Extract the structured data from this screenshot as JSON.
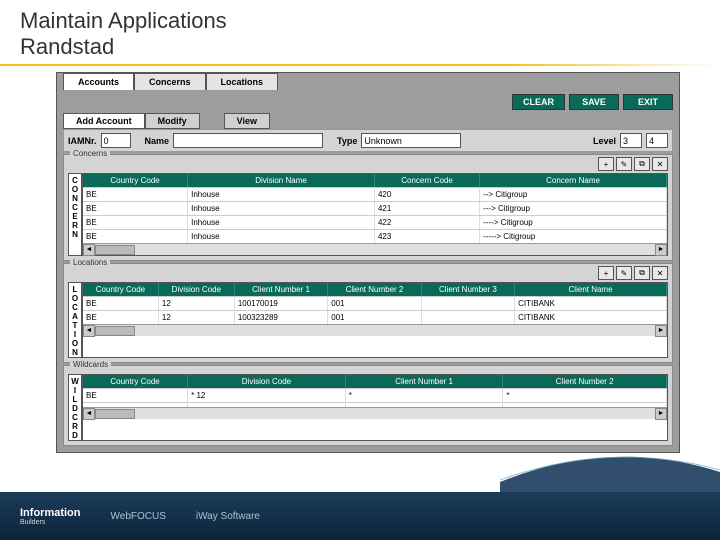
{
  "slide": {
    "title_line1": "Maintain Applications",
    "title_line2": "Randstad"
  },
  "tabs": [
    "Accounts",
    "Concerns",
    "Locations"
  ],
  "active_tab_index": 0,
  "top_buttons": {
    "clear": "CLEAR",
    "save": "SAVE",
    "exit": "EXIT"
  },
  "subtabs": [
    "Add Account",
    "Modify",
    "View"
  ],
  "active_subtab_index": 0,
  "form": {
    "lbl_iam": "IAMNr.",
    "iam_value": "0",
    "lbl_name": "Name",
    "name_value": "",
    "lbl_type": "Type",
    "type_value": "Unknown",
    "lbl_level": "Level",
    "level_a": "3",
    "level_b": "4"
  },
  "sections": {
    "concerns": {
      "label": "Concerns",
      "vlabel": "CONCERN",
      "headers": [
        "Country Code",
        "Division Name",
        "Concern Code",
        "Concern Name"
      ],
      "col_widths": [
        "18%",
        "32%",
        "18%",
        "32%"
      ],
      "rows": [
        [
          "BE",
          "Inhouse",
          "420",
          "--> Citigroup"
        ],
        [
          "BE",
          "Inhouse",
          "421",
          "---> Citigroup"
        ],
        [
          "BE",
          "Inhouse",
          "422",
          "----> Citigroup"
        ],
        [
          "BE",
          "Inhouse",
          "423",
          "-----> Citigroup"
        ]
      ]
    },
    "locations": {
      "label": "Locations",
      "vlabel": "LOCATION",
      "headers": [
        "Country Code",
        "Division Code",
        "Client Number 1",
        "Client Number 2",
        "Client Number 3",
        "Client Name"
      ],
      "col_widths": [
        "13%",
        "13%",
        "16%",
        "16%",
        "16%",
        "26%"
      ],
      "rows": [
        [
          "BE",
          "12",
          "100170019",
          "001",
          "",
          "CITIBANK"
        ],
        [
          "BE",
          "12",
          "100323289",
          "001",
          "",
          "CITIBANK"
        ]
      ]
    },
    "wildcards": {
      "label": "Wildcards",
      "vlabel": "WILDCRD",
      "headers": [
        "Country Code",
        "Division Code",
        "Client Number 1",
        "Client Number 2"
      ],
      "col_widths": [
        "18%",
        "27%",
        "27%",
        "28%"
      ],
      "rows": [
        [
          "BE",
          "* 12",
          "*",
          "*"
        ],
        [
          "",
          "",
          "",
          ""
        ]
      ]
    }
  },
  "icons": {
    "add": "+",
    "edit": "✎",
    "copy": "⧉",
    "del": "✕"
  },
  "footer": {
    "logo_top": "Information",
    "logo_bottom": "Builders",
    "link1": "WebFOCUS",
    "link2": "iWay Software"
  },
  "colors": {
    "header_green": "#0a6a5a",
    "frame_gray": "#9d9d9d",
    "panel_gray": "#d4d4d4"
  }
}
